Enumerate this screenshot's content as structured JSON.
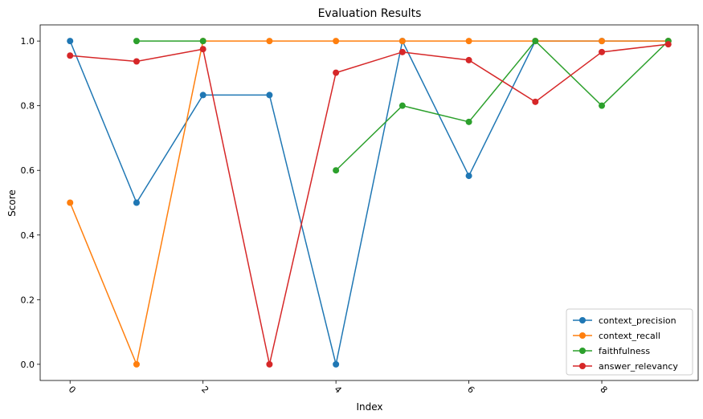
{
  "chart_data": {
    "type": "line",
    "title": "Evaluation Results",
    "xlabel": "Index",
    "ylabel": "Score",
    "x": [
      0,
      1,
      2,
      3,
      4,
      5,
      6,
      7,
      8,
      9
    ],
    "xticks": [
      "0",
      "2",
      "4",
      "6",
      "8"
    ],
    "yticks": [
      "0.0",
      "0.2",
      "0.4",
      "0.6",
      "0.8",
      "1.0"
    ],
    "xlim": [
      -0.45,
      9.45
    ],
    "ylim": [
      -0.05,
      1.05
    ],
    "grid": false,
    "legend_position": "lower-right",
    "series": [
      {
        "name": "context_precision",
        "color": "#1f77b4",
        "values": [
          1.0,
          0.5,
          0.833,
          0.833,
          0.0,
          1.0,
          0.583,
          1.0,
          1.0,
          1.0
        ]
      },
      {
        "name": "context_recall",
        "color": "#ff7f0e",
        "values": [
          0.5,
          0.0,
          1.0,
          1.0,
          1.0,
          1.0,
          1.0,
          1.0,
          1.0,
          1.0
        ]
      },
      {
        "name": "faithfulness",
        "color": "#2ca02c",
        "values": [
          null,
          1.0,
          1.0,
          null,
          0.6,
          0.8,
          0.75,
          1.0,
          0.8,
          1.0
        ]
      },
      {
        "name": "answer_relevancy",
        "color": "#d62728",
        "values": [
          0.955,
          0.937,
          0.975,
          0.0,
          0.902,
          0.966,
          0.941,
          0.812,
          0.966,
          0.99
        ]
      }
    ]
  }
}
